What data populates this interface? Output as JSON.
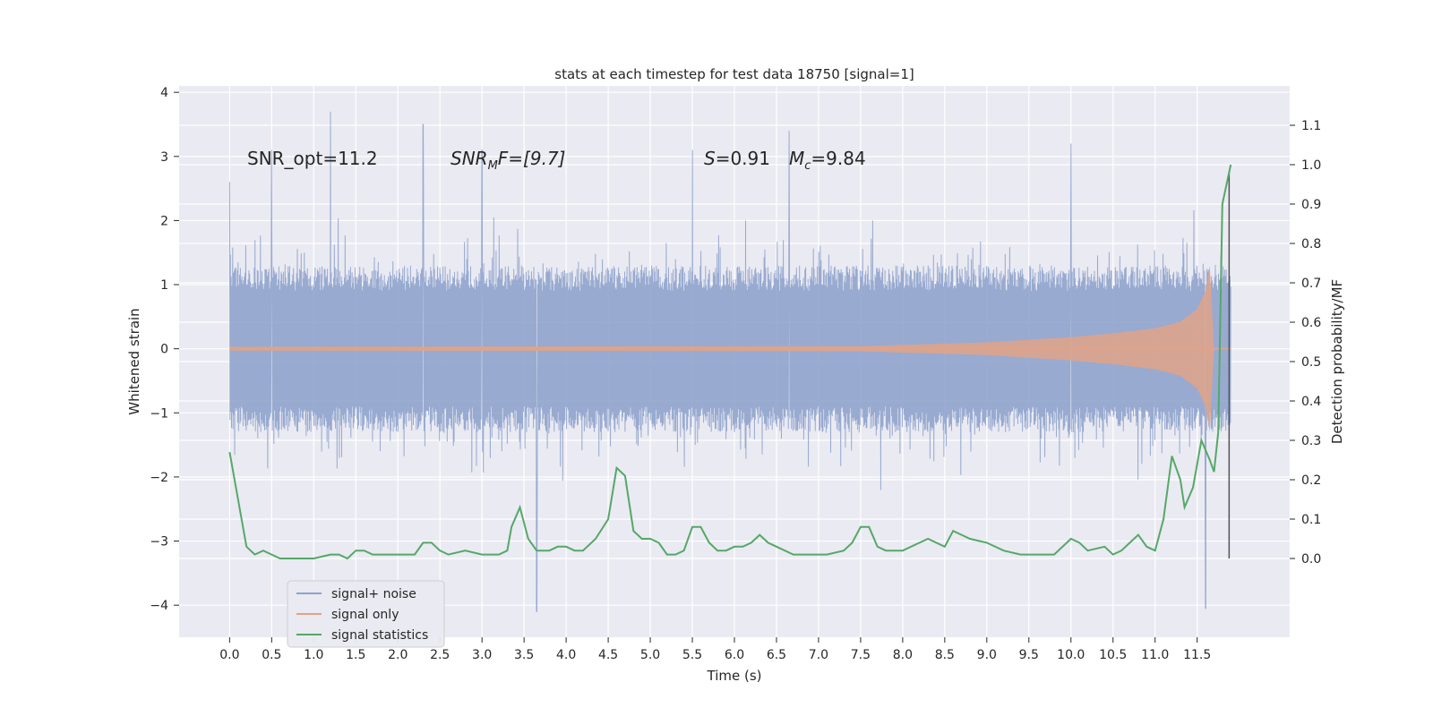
{
  "chart_data": {
    "type": "line",
    "title": "stats at each timestep for test data 18750 [signal=1]",
    "xlabel": "Time (s)",
    "ylabel_left": "Whitened strain",
    "ylabel_right": "Detection probability/MF",
    "xlim": [
      -0.6,
      12.6
    ],
    "ylim_left": [
      -4.5,
      4.1
    ],
    "ylim_right": [
      -0.2,
      1.2
    ],
    "x_ticks": [
      "0.0",
      "0.5",
      "1.0",
      "1.5",
      "2.0",
      "2.5",
      "3.0",
      "3.5",
      "4.0",
      "4.5",
      "5.0",
      "5.5",
      "6.0",
      "6.5",
      "7.0",
      "7.5",
      "8.0",
      "8.5",
      "9.0",
      "9.5",
      "10.0",
      "10.5",
      "11.0",
      "11.5"
    ],
    "y_ticks_left": [
      "−4",
      "−3",
      "−2",
      "−1",
      "0",
      "1",
      "2",
      "3",
      "4"
    ],
    "y_ticks_right": [
      "0.0",
      "0.1",
      "0.2",
      "0.3",
      "0.4",
      "0.5",
      "0.6",
      "0.7",
      "0.8",
      "0.9",
      "1.0",
      "1.1"
    ],
    "annotations": {
      "snr_opt": "SNR_opt=11.2",
      "snr_mf_main": "SNR",
      "snr_mf_sub": "M",
      "snr_mf_rest": "F=[9.7]",
      "s_main": "S",
      "s_rest": "=0.91",
      "mc_main": "M",
      "mc_sub": "c",
      "mc_rest": "=9.84"
    },
    "series": [
      {
        "name": "signal+ noise",
        "color": "#8fa3cc",
        "note": "whitened strain noise band, roughly within ±1.5 with spikes to ±3.7 / −4.1",
        "x_range": [
          0.0,
          11.9
        ],
        "typical_abs": 1.5,
        "spikes": [
          [
            0.0,
            2.6
          ],
          [
            0.5,
            3.1
          ],
          [
            1.2,
            3.7
          ],
          [
            2.3,
            3.5
          ],
          [
            3.0,
            3.1
          ],
          [
            3.65,
            -4.1
          ],
          [
            5.5,
            3.1
          ],
          [
            6.65,
            3.4
          ],
          [
            10.0,
            3.2
          ],
          [
            11.6,
            -4.05
          ]
        ]
      },
      {
        "name": "signal only",
        "color": "#e0a388",
        "note": "chirp amplitude envelope (strain units)",
        "x": [
          0.0,
          7.5,
          9.0,
          10.0,
          10.5,
          11.0,
          11.3,
          11.5,
          11.6,
          11.65,
          11.7,
          11.9
        ],
        "amplitude": [
          0.03,
          0.04,
          0.1,
          0.18,
          0.24,
          0.32,
          0.42,
          0.62,
          0.9,
          1.3,
          0.0,
          0.0
        ]
      },
      {
        "name": "signal statistics",
        "color": "#55a868",
        "axis": "right",
        "x": [
          0.0,
          0.1,
          0.2,
          0.3,
          0.4,
          0.5,
          0.6,
          0.8,
          1.0,
          1.2,
          1.3,
          1.4,
          1.5,
          1.6,
          1.7,
          1.8,
          2.0,
          2.2,
          2.3,
          2.4,
          2.45,
          2.5,
          2.6,
          2.8,
          3.0,
          3.2,
          3.3,
          3.35,
          3.45,
          3.55,
          3.65,
          3.8,
          3.9,
          4.0,
          4.1,
          4.2,
          4.35,
          4.5,
          4.6,
          4.7,
          4.8,
          4.9,
          5.0,
          5.1,
          5.2,
          5.3,
          5.4,
          5.5,
          5.6,
          5.7,
          5.8,
          5.9,
          6.0,
          6.1,
          6.2,
          6.3,
          6.4,
          6.5,
          6.7,
          6.9,
          7.1,
          7.3,
          7.4,
          7.5,
          7.6,
          7.7,
          7.8,
          8.0,
          8.2,
          8.3,
          8.5,
          8.6,
          8.7,
          8.8,
          9.0,
          9.2,
          9.4,
          9.6,
          9.7,
          9.8,
          10.0,
          10.1,
          10.2,
          10.4,
          10.5,
          10.6,
          10.7,
          10.8,
          10.9,
          11.0,
          11.1,
          11.2,
          11.3,
          11.35,
          11.45,
          11.55,
          11.65,
          11.7,
          11.75,
          11.8,
          11.9
        ],
        "y": [
          0.27,
          0.15,
          0.03,
          0.01,
          0.02,
          0.01,
          0.0,
          0.0,
          0.0,
          0.01,
          0.01,
          0.0,
          0.02,
          0.02,
          0.01,
          0.01,
          0.01,
          0.01,
          0.04,
          0.04,
          0.03,
          0.02,
          0.01,
          0.02,
          0.01,
          0.01,
          0.02,
          0.08,
          0.13,
          0.05,
          0.02,
          0.02,
          0.03,
          0.03,
          0.02,
          0.02,
          0.05,
          0.1,
          0.23,
          0.21,
          0.07,
          0.05,
          0.05,
          0.04,
          0.01,
          0.01,
          0.02,
          0.08,
          0.08,
          0.04,
          0.02,
          0.02,
          0.03,
          0.03,
          0.04,
          0.06,
          0.04,
          0.03,
          0.01,
          0.01,
          0.01,
          0.02,
          0.04,
          0.08,
          0.08,
          0.03,
          0.02,
          0.02,
          0.04,
          0.05,
          0.03,
          0.07,
          0.06,
          0.05,
          0.04,
          0.02,
          0.01,
          0.01,
          0.01,
          0.01,
          0.05,
          0.04,
          0.02,
          0.03,
          0.01,
          0.02,
          0.04,
          0.06,
          0.03,
          0.02,
          0.1,
          0.26,
          0.2,
          0.13,
          0.18,
          0.3,
          0.25,
          0.22,
          0.32,
          0.9,
          1.0
        ]
      }
    ],
    "vertical_marker_x": 11.88
  },
  "legend": {
    "items": [
      {
        "label": "signal+ noise",
        "color": "#8fa3cc"
      },
      {
        "label": "signal only",
        "color": "#e0a388"
      },
      {
        "label": "signal statistics",
        "color": "#55a868"
      }
    ]
  }
}
